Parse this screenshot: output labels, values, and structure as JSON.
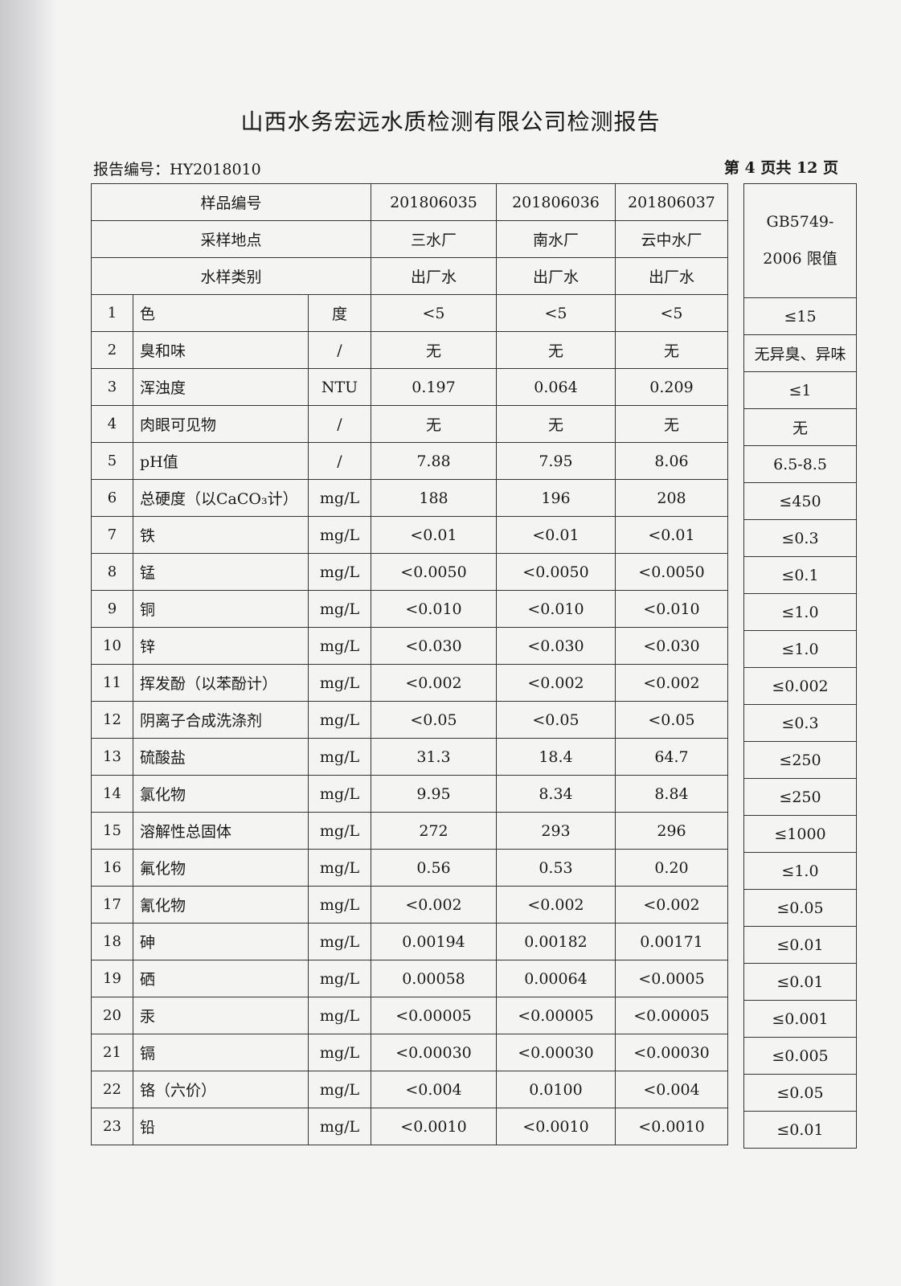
{
  "title": "山西水务宏远水质检测有限公司检测报告",
  "report_no": "报告编号：HY2018010",
  "page_info": "第 4 页共 12 页",
  "header": {
    "sample_no_label": "样品编号",
    "site_label": "采样地点",
    "type_label": "水样类别",
    "samples": [
      {
        "no": "201806035",
        "site": "三水厂",
        "type": "出厂水"
      },
      {
        "no": "201806036",
        "site": "南水厂",
        "type": "出厂水"
      },
      {
        "no": "201806037",
        "site": "云中水厂",
        "type": "出厂水"
      }
    ],
    "limit_label_1": "GB5749-",
    "limit_label_2": "2006 限值"
  },
  "rows": [
    {
      "idx": "1",
      "name": "色",
      "unit": "度",
      "v": [
        "<5",
        "<5",
        "<5"
      ],
      "limit": "≤15"
    },
    {
      "idx": "2",
      "name": "臭和味",
      "unit": "/",
      "v": [
        "无",
        "无",
        "无"
      ],
      "limit": "无异臭、异味"
    },
    {
      "idx": "3",
      "name": "浑浊度",
      "unit": "NTU",
      "v": [
        "0.197",
        "0.064",
        "0.209"
      ],
      "limit": "≤1"
    },
    {
      "idx": "4",
      "name": "肉眼可见物",
      "unit": "/",
      "v": [
        "无",
        "无",
        "无"
      ],
      "limit": "无"
    },
    {
      "idx": "5",
      "name": "pH值",
      "unit": "/",
      "v": [
        "7.88",
        "7.95",
        "8.06"
      ],
      "limit": "6.5-8.5"
    },
    {
      "idx": "6",
      "name": "总硬度（以CaCO₃计）",
      "unit": "mg/L",
      "v": [
        "188",
        "196",
        "208"
      ],
      "limit": "≤450"
    },
    {
      "idx": "7",
      "name": "铁",
      "unit": "mg/L",
      "v": [
        "<0.01",
        "<0.01",
        "<0.01"
      ],
      "limit": "≤0.3"
    },
    {
      "idx": "8",
      "name": "锰",
      "unit": "mg/L",
      "v": [
        "<0.0050",
        "<0.0050",
        "<0.0050"
      ],
      "limit": "≤0.1"
    },
    {
      "idx": "9",
      "name": "铜",
      "unit": "mg/L",
      "v": [
        "<0.010",
        "<0.010",
        "<0.010"
      ],
      "limit": "≤1.0"
    },
    {
      "idx": "10",
      "name": "锌",
      "unit": "mg/L",
      "v": [
        "<0.030",
        "<0.030",
        "<0.030"
      ],
      "limit": "≤1.0"
    },
    {
      "idx": "11",
      "name": "挥发酚（以苯酚计）",
      "unit": "mg/L",
      "v": [
        "<0.002",
        "<0.002",
        "<0.002"
      ],
      "limit": "≤0.002"
    },
    {
      "idx": "12",
      "name": "阴离子合成洗涤剂",
      "unit": "mg/L",
      "v": [
        "<0.05",
        "<0.05",
        "<0.05"
      ],
      "limit": "≤0.3"
    },
    {
      "idx": "13",
      "name": "硫酸盐",
      "unit": "mg/L",
      "v": [
        "31.3",
        "18.4",
        "64.7"
      ],
      "limit": "≤250"
    },
    {
      "idx": "14",
      "name": "氯化物",
      "unit": "mg/L",
      "v": [
        "9.95",
        "8.34",
        "8.84"
      ],
      "limit": "≤250"
    },
    {
      "idx": "15",
      "name": "溶解性总固体",
      "unit": "mg/L",
      "v": [
        "272",
        "293",
        "296"
      ],
      "limit": "≤1000"
    },
    {
      "idx": "16",
      "name": "氟化物",
      "unit": "mg/L",
      "v": [
        "0.56",
        "0.53",
        "0.20"
      ],
      "limit": "≤1.0"
    },
    {
      "idx": "17",
      "name": "氰化物",
      "unit": "mg/L",
      "v": [
        "<0.002",
        "<0.002",
        "<0.002"
      ],
      "limit": "≤0.05"
    },
    {
      "idx": "18",
      "name": "砷",
      "unit": "mg/L",
      "v": [
        "0.00194",
        "0.00182",
        "0.00171"
      ],
      "limit": "≤0.01"
    },
    {
      "idx": "19",
      "name": "硒",
      "unit": "mg/L",
      "v": [
        "0.00058",
        "0.00064",
        "<0.0005"
      ],
      "limit": "≤0.01"
    },
    {
      "idx": "20",
      "name": "汞",
      "unit": "mg/L",
      "v": [
        "<0.00005",
        "<0.00005",
        "<0.00005"
      ],
      "limit": "≤0.001"
    },
    {
      "idx": "21",
      "name": "镉",
      "unit": "mg/L",
      "v": [
        "<0.00030",
        "<0.00030",
        "<0.00030"
      ],
      "limit": "≤0.005"
    },
    {
      "idx": "22",
      "name": "铬（六价）",
      "unit": "mg/L",
      "v": [
        "<0.004",
        "0.0100",
        "<0.004"
      ],
      "limit": "≤0.05"
    },
    {
      "idx": "23",
      "name": "铅",
      "unit": "mg/L",
      "v": [
        "<0.0010",
        "<0.0010",
        "<0.0010"
      ],
      "limit": "≤0.01"
    }
  ]
}
